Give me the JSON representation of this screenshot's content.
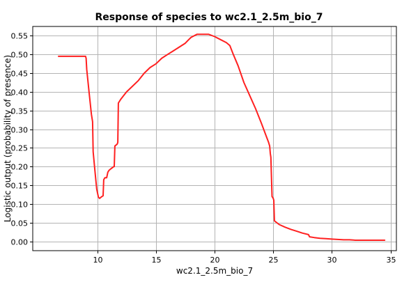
{
  "chart_data": {
    "type": "line",
    "title": "Response of species to wc2.1_2.5m_bio_7",
    "xlabel": "wc2.1_2.5m_bio_7",
    "ylabel": "Logistic output (probability of presence)",
    "xlim": [
      4.5,
      35.5
    ],
    "ylim": [
      -0.025,
      0.575
    ],
    "xticks": [
      10,
      15,
      20,
      25,
      30,
      35
    ],
    "yticks": [
      0.0,
      0.05,
      0.1,
      0.15,
      0.2,
      0.25,
      0.3,
      0.35,
      0.4,
      0.45,
      0.5,
      0.55
    ],
    "grid": true,
    "line_color": "#ff2020",
    "grid_color": "#b4b4b4",
    "series": [
      {
        "x": [
          6.7,
          7.5,
          8.3,
          9.0,
          9.05,
          9.1,
          9.3,
          9.5,
          9.6,
          9.65,
          9.8,
          9.95,
          10.1,
          10.2,
          10.4,
          10.5,
          10.55,
          10.65,
          10.8,
          10.9,
          11.0,
          11.2,
          11.4,
          11.45,
          11.5,
          11.7,
          11.75,
          11.8,
          12.0,
          12.5,
          13.0,
          13.5,
          14.0,
          14.5,
          15.0,
          15.5,
          16.0,
          16.5,
          17.0,
          17.5,
          17.8,
          18.0,
          18.5,
          19.0,
          19.5,
          20.0,
          20.5,
          21.0,
          21.3,
          21.6,
          22.0,
          22.5,
          23.0,
          23.5,
          24.0,
          24.3,
          24.6,
          24.7,
          24.75,
          24.8,
          24.9,
          25.0,
          25.05,
          25.1,
          25.5,
          26.0,
          26.5,
          27.0,
          27.5,
          28.0,
          28.1,
          28.5,
          29.0,
          29.5,
          30.0,
          30.5,
          31.0,
          31.5,
          32.0,
          32.5,
          33.0,
          33.5,
          34.0,
          34.5
        ],
        "y": [
          0.495,
          0.495,
          0.495,
          0.495,
          0.49,
          0.46,
          0.4,
          0.34,
          0.32,
          0.24,
          0.19,
          0.14,
          0.118,
          0.115,
          0.12,
          0.122,
          0.165,
          0.17,
          0.17,
          0.185,
          0.19,
          0.195,
          0.2,
          0.2,
          0.255,
          0.26,
          0.265,
          0.37,
          0.38,
          0.4,
          0.415,
          0.43,
          0.45,
          0.465,
          0.475,
          0.49,
          0.5,
          0.51,
          0.52,
          0.53,
          0.54,
          0.546,
          0.554,
          0.554,
          0.554,
          0.548,
          0.54,
          0.532,
          0.524,
          0.5,
          0.47,
          0.425,
          0.39,
          0.355,
          0.315,
          0.29,
          0.265,
          0.255,
          0.235,
          0.225,
          0.12,
          0.115,
          0.11,
          0.055,
          0.045,
          0.038,
          0.032,
          0.027,
          0.022,
          0.018,
          0.012,
          0.01,
          0.008,
          0.007,
          0.006,
          0.005,
          0.004,
          0.004,
          0.003,
          0.003,
          0.003,
          0.003,
          0.003,
          0.003
        ]
      }
    ]
  }
}
